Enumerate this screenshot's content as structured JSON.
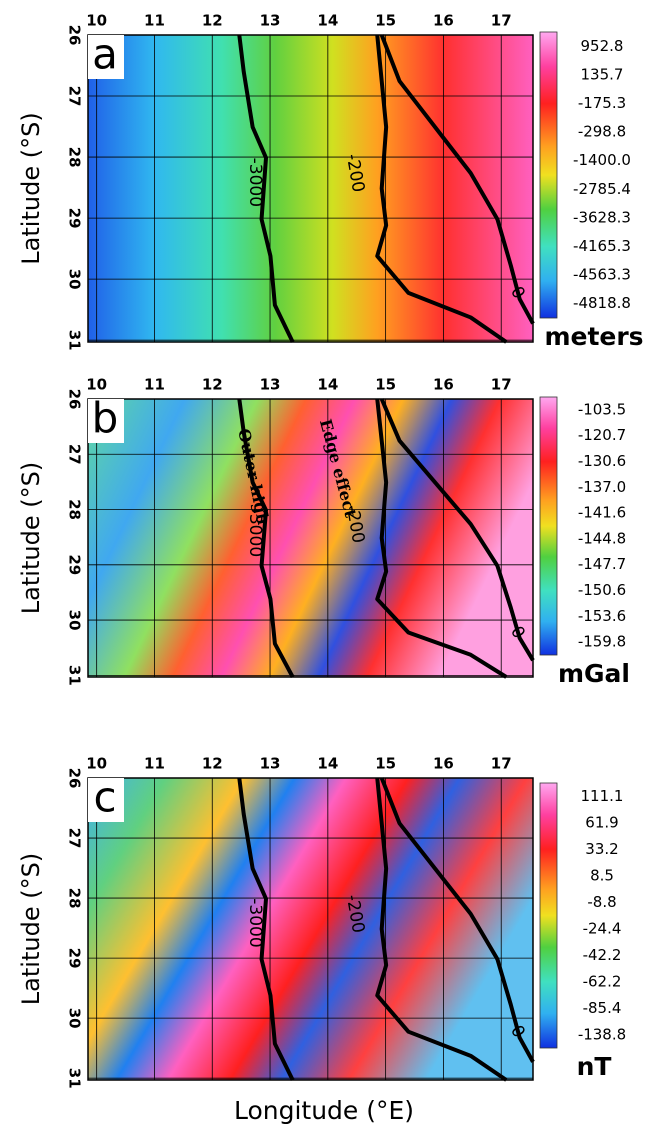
{
  "chart_data": [
    {
      "type": "map",
      "panel": "a",
      "xticks": [
        10,
        11,
        12,
        13,
        14,
        15,
        16,
        17
      ],
      "xlim": [
        9.85,
        17.55
      ],
      "yticks": [
        26,
        27,
        28,
        29,
        30,
        31
      ],
      "ylim": [
        26,
        31.03
      ],
      "colorbar_labels": [
        "952.8",
        "135.7",
        "-175.3",
        "-298.8",
        "-1400.0",
        "-2785.4",
        "-3628.3",
        "-4165.3",
        "-4563.3",
        "-4818.8"
      ],
      "unit": "meters",
      "contour_labels": [
        "-3000",
        "-200",
        "0"
      ],
      "annotations": []
    },
    {
      "type": "map",
      "panel": "b",
      "xticks": [
        10,
        11,
        12,
        13,
        14,
        15,
        16,
        17
      ],
      "xlim": [
        9.85,
        17.55
      ],
      "yticks": [
        26,
        27,
        28,
        29,
        30,
        31
      ],
      "ylim": [
        26,
        31.03
      ],
      "colorbar_labels": [
        "-103.5",
        "-120.7",
        "-130.6",
        "-137.0",
        "-141.6",
        "-144.8",
        "-147.7",
        "-150.6",
        "-153.6",
        "-159.8"
      ],
      "unit": "mGal",
      "contour_labels": [
        "-3000",
        "-200",
        "0"
      ],
      "annotations": [
        "Outer high",
        "Edge effect"
      ]
    },
    {
      "type": "map",
      "panel": "c",
      "xticks": [
        10,
        11,
        12,
        13,
        14,
        15,
        16,
        17
      ],
      "xlim": [
        9.85,
        17.55
      ],
      "yticks": [
        26,
        27,
        28,
        29,
        30,
        31
      ],
      "ylim": [
        26,
        31.03
      ],
      "colorbar_labels": [
        "111.1",
        "61.9",
        "33.2",
        "8.5",
        "-8.8",
        "-24.4",
        "-42.2",
        "-62.2",
        "-85.4",
        "-138.8"
      ],
      "unit": "nT",
      "contour_labels": [
        "-3000",
        "-200",
        "0"
      ],
      "annotations": []
    }
  ],
  "y_label": "Latitude (°S)",
  "x_label": "Longitude (°E)"
}
